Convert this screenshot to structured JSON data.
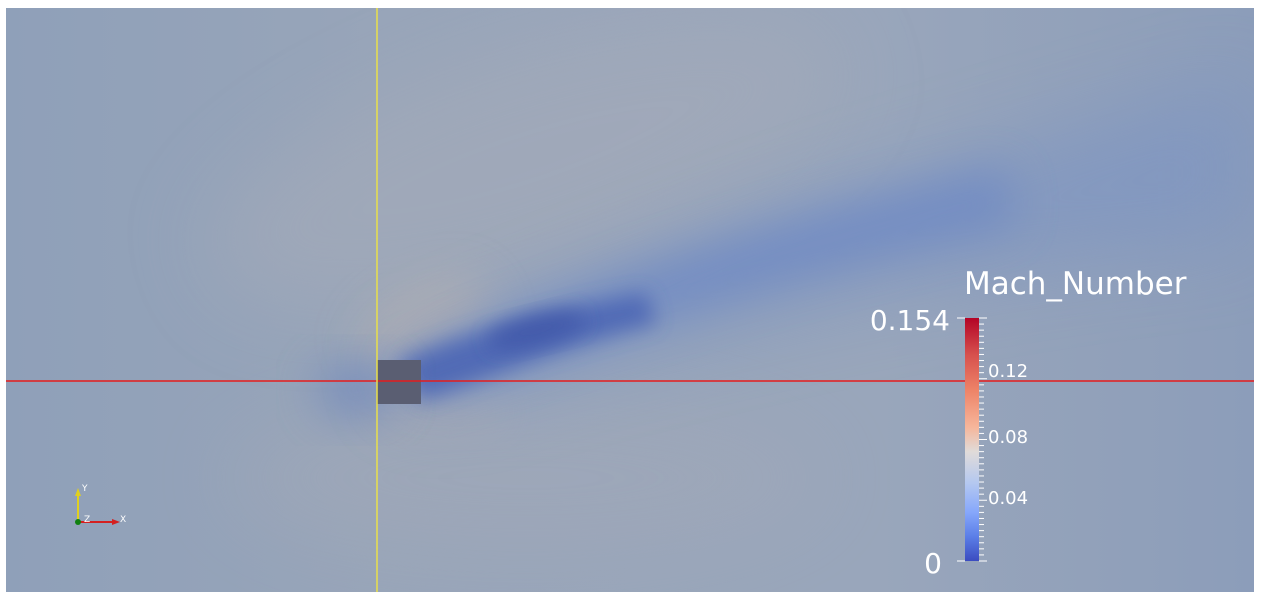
{
  "legend": {
    "title": "Mach_Number",
    "max_label": "0.154",
    "min_label": "0",
    "ticks": [
      "0.12",
      "0.08",
      "0.04"
    ],
    "range": [
      0,
      0.154
    ],
    "colormap": [
      "#3b4cc0",
      "#86a7fb",
      "#e0dbd9",
      "#f6b69b",
      "#b40426"
    ]
  },
  "axes_triad": {
    "y_label": "Y",
    "z_label": "Z",
    "x_label": "X",
    "x_color": "#d42020",
    "y_color": "#e0d020",
    "z_color": "#108010"
  },
  "probe_lines": {
    "horizontal_color": "#e51c1c",
    "vertical_color": "#e9e04a"
  },
  "obstacle_color": "#5a5e72",
  "background_color": "#97a4b9"
}
